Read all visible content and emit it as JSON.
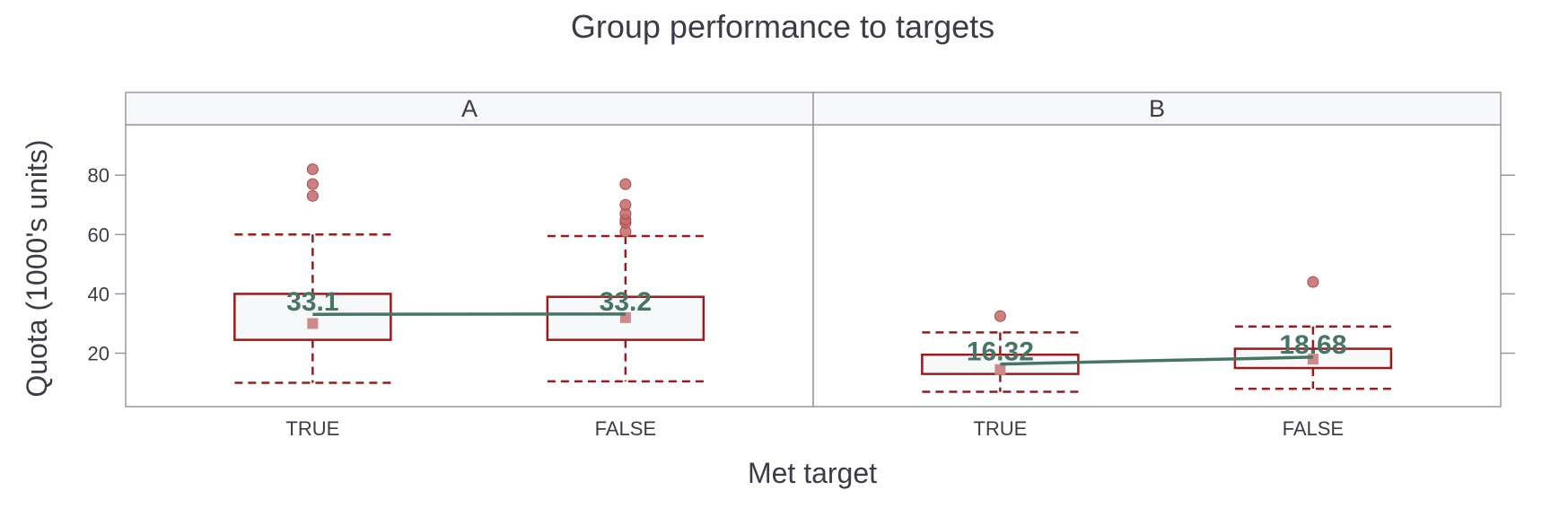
{
  "chart_data": {
    "type": "box",
    "title": "Group performance to targets",
    "xlabel": "Met target",
    "ylabel": "Quota (1000's units)",
    "ylim": [
      2,
      97
    ],
    "yticks": [
      20,
      40,
      60,
      80
    ],
    "grid": false,
    "legend": "none",
    "categories": [
      "TRUE",
      "FALSE"
    ],
    "colors": {
      "box": "#9b1b1b",
      "box_fill": "#f7f8fa",
      "outlier": "#c46a6a",
      "median_marker": "#cd8a8a",
      "mean_line": "#467566",
      "frame": "#9a97a3",
      "strip_fill": "#f7f8fa",
      "text": "#3f3a48"
    },
    "facets": [
      {
        "label": "A",
        "boxes": [
          {
            "category": "TRUE",
            "whisker_low": 10,
            "q1": 24.5,
            "median": 30,
            "q3": 40,
            "whisker_high": 60,
            "mean": 33.1,
            "mean_label": "33.1",
            "outliers": [
              73,
              77,
              82
            ]
          },
          {
            "category": "FALSE",
            "whisker_low": 10.5,
            "q1": 24.5,
            "median": 32,
            "q3": 39,
            "whisker_high": 59.5,
            "mean": 33.2,
            "mean_label": "33.2",
            "outliers": [
              61,
              64,
              65,
              67,
              70,
              77
            ]
          }
        ]
      },
      {
        "label": "B",
        "boxes": [
          {
            "category": "TRUE",
            "whisker_low": 7,
            "q1": 13,
            "median": 14.5,
            "q3": 19.5,
            "whisker_high": 27,
            "mean": 16.32,
            "mean_label": "16.32",
            "outliers": [
              32.5
            ]
          },
          {
            "category": "FALSE",
            "whisker_low": 8,
            "q1": 15,
            "median": 18,
            "q3": 21.5,
            "whisker_high": 29,
            "mean": 18.68,
            "mean_label": "18.68",
            "outliers": [
              44
            ]
          }
        ]
      }
    ]
  }
}
